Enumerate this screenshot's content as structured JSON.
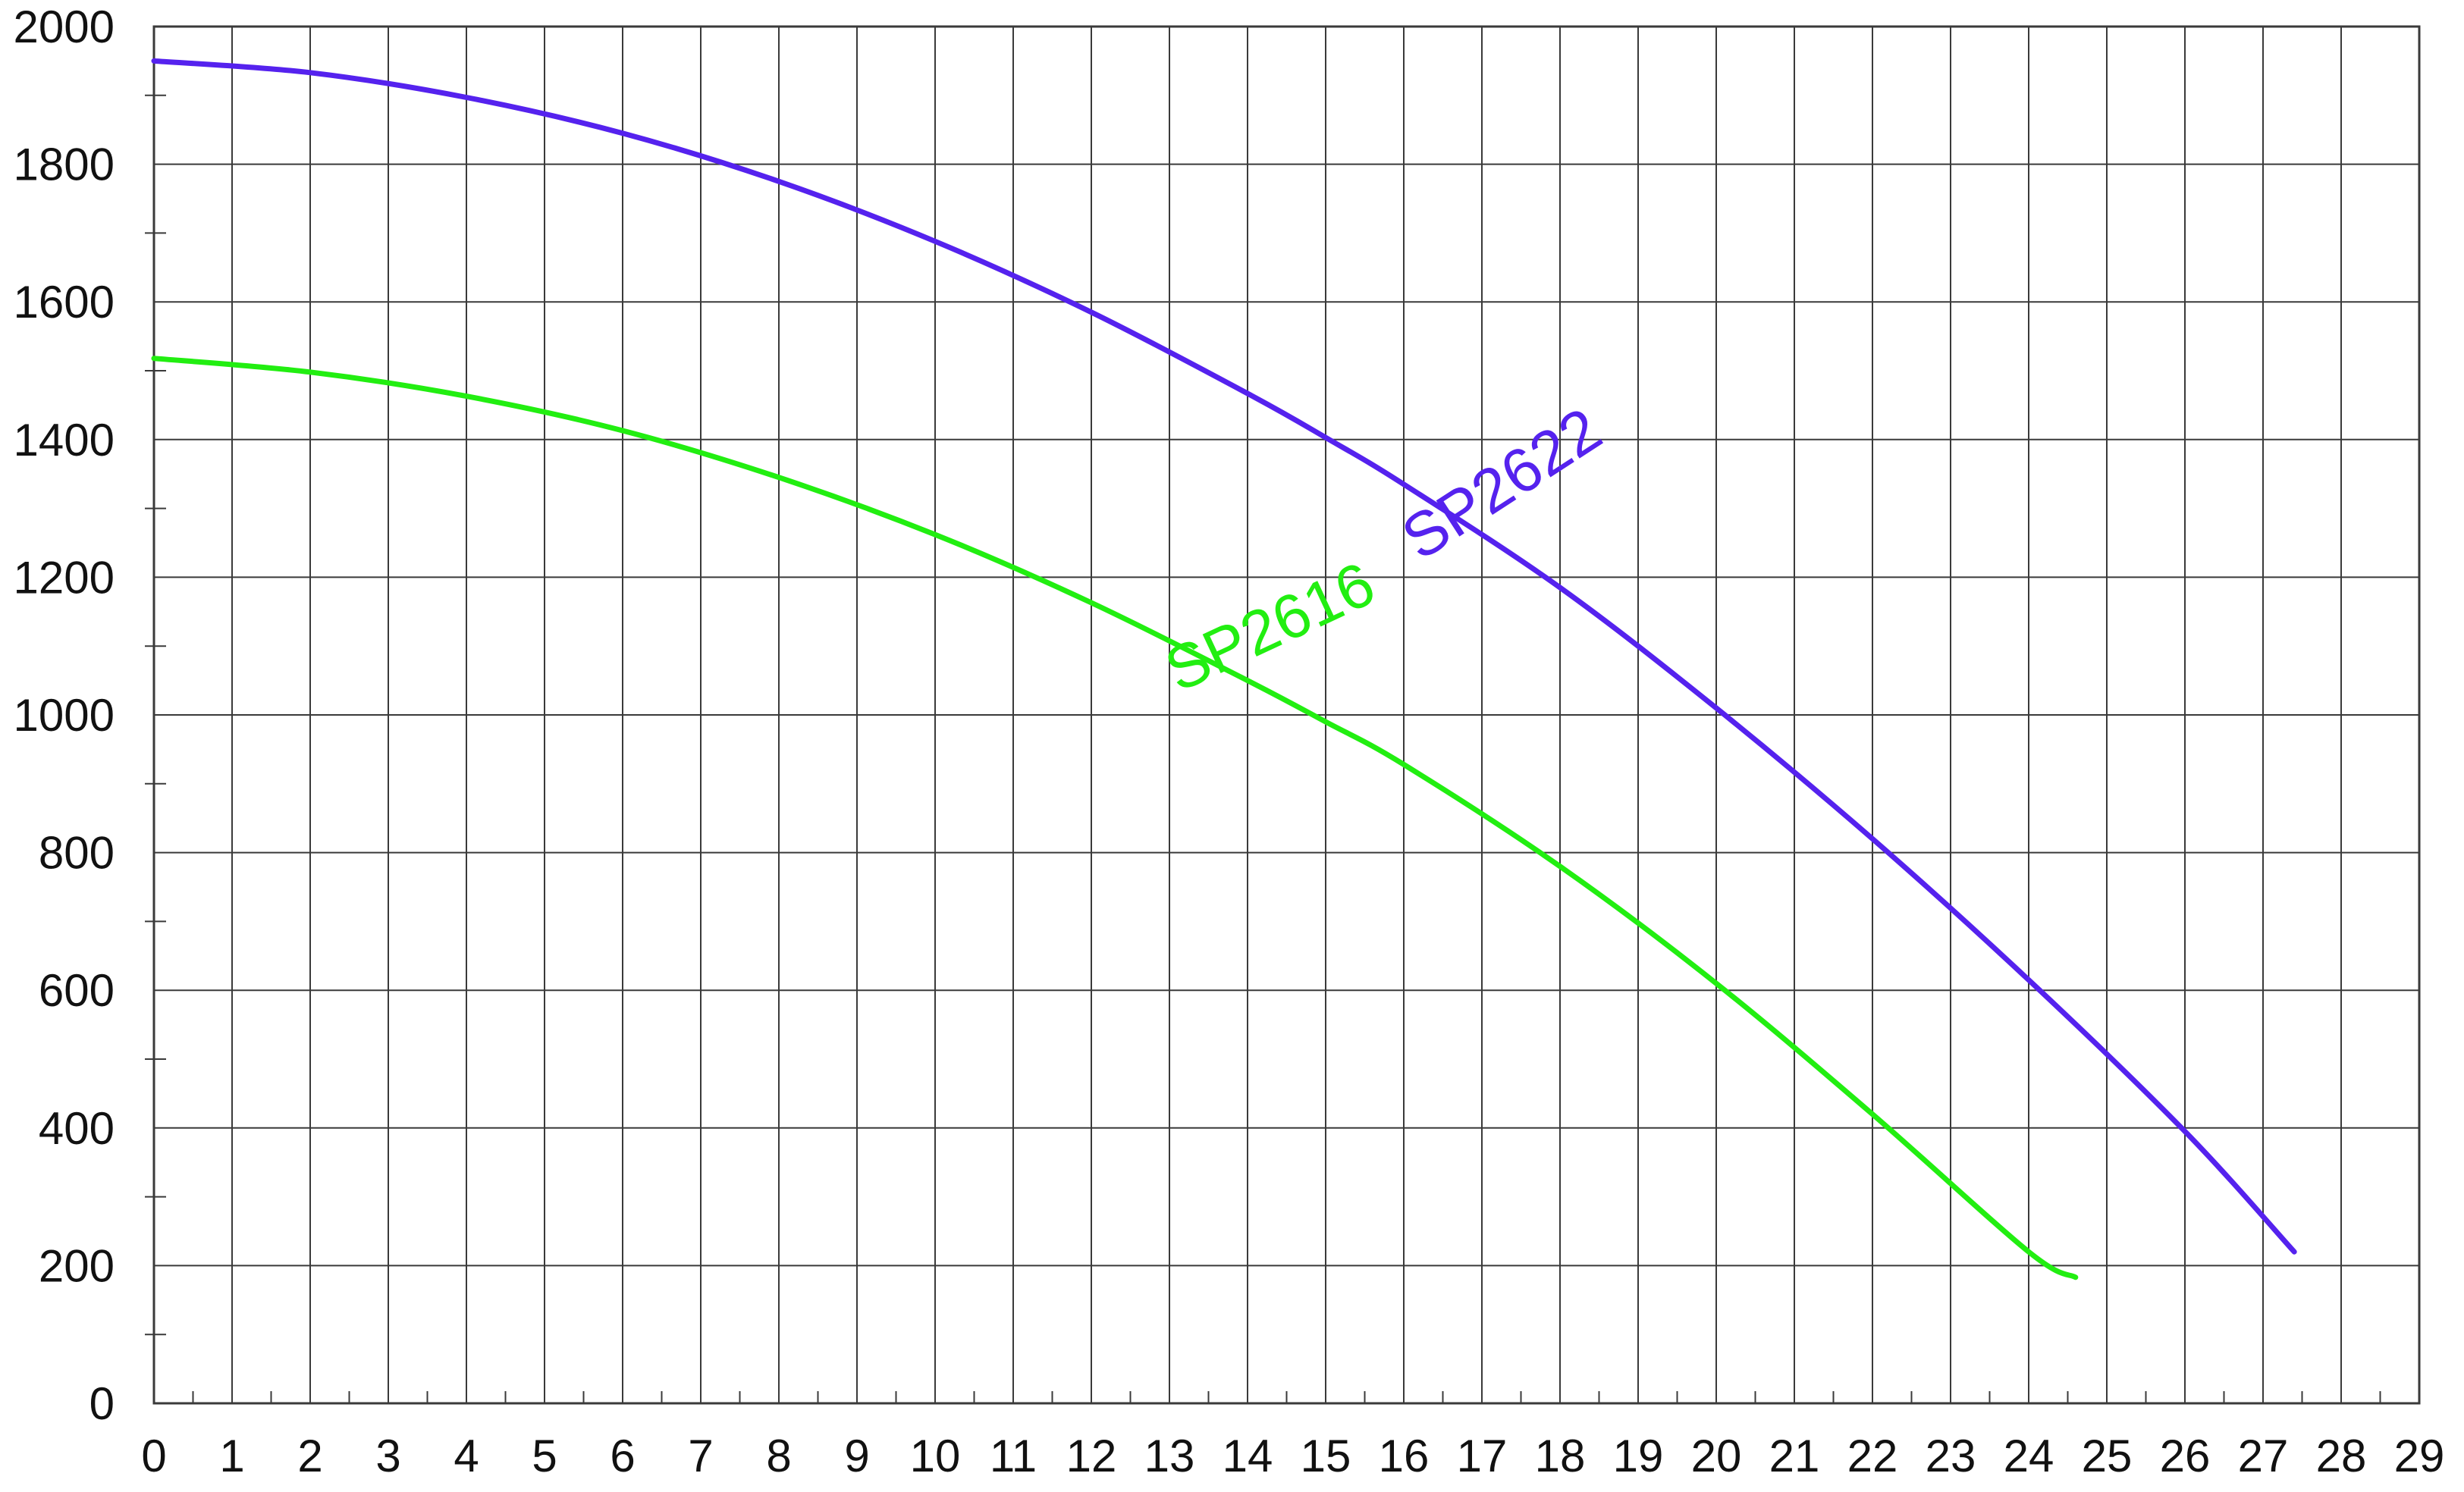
{
  "chart_data": {
    "type": "line",
    "title": "",
    "xlabel": "",
    "ylabel": "",
    "xlim": [
      0,
      29
    ],
    "ylim": [
      0,
      2000
    ],
    "x_ticks": [
      0,
      1,
      2,
      3,
      4,
      5,
      6,
      7,
      8,
      9,
      10,
      11,
      12,
      13,
      14,
      15,
      16,
      17,
      18,
      19,
      20,
      21,
      22,
      23,
      24,
      25,
      26,
      27,
      28,
      29
    ],
    "y_ticks": [
      0,
      200,
      400,
      600,
      800,
      1000,
      1200,
      1400,
      1600,
      1800,
      2000
    ],
    "x_tick_labels": [
      "0",
      "1",
      "2",
      "3",
      "4",
      "5",
      "6",
      "7",
      "8",
      "9",
      "10",
      "11",
      "12",
      "13",
      "14",
      "15",
      "16",
      "17",
      "18",
      "19",
      "20",
      "21",
      "22",
      "23",
      "24",
      "25",
      "26",
      "27",
      "28",
      "29"
    ],
    "y_tick_labels": [
      "0",
      "200",
      "400",
      "600",
      "800",
      "1000",
      "1200",
      "1400",
      "1600",
      "1800",
      "2000"
    ],
    "grid": true,
    "legend": "none",
    "series": [
      {
        "name": "SP2622",
        "color": "#5522ee",
        "x": [
          0,
          2,
          4,
          6,
          8,
          10,
          12,
          14,
          15,
          16,
          18,
          20,
          22,
          24,
          26,
          27.4
        ],
        "y": [
          1950,
          1933,
          1897,
          1845,
          1775,
          1688,
          1585,
          1467,
          1403,
          1335,
          1185,
          1010,
          820,
          615,
          395,
          220
        ]
      },
      {
        "name": "SP2616",
        "color": "#22ee11",
        "x": [
          0,
          2,
          4,
          6,
          8,
          10,
          12,
          14,
          15,
          16,
          18,
          20,
          22,
          24,
          24.6
        ],
        "y": [
          1518,
          1498,
          1463,
          1413,
          1345,
          1262,
          1163,
          1050,
          990,
          928,
          780,
          610,
          420,
          220,
          183
        ]
      }
    ],
    "annotations": [
      {
        "text": "SP2622",
        "x": 17.4,
        "y": 1310,
        "color": "#5522ee",
        "rotation": -33
      },
      {
        "text": "SP2616",
        "x": 14.4,
        "y": 1100,
        "color": "#22ee11",
        "rotation": -25
      }
    ]
  }
}
